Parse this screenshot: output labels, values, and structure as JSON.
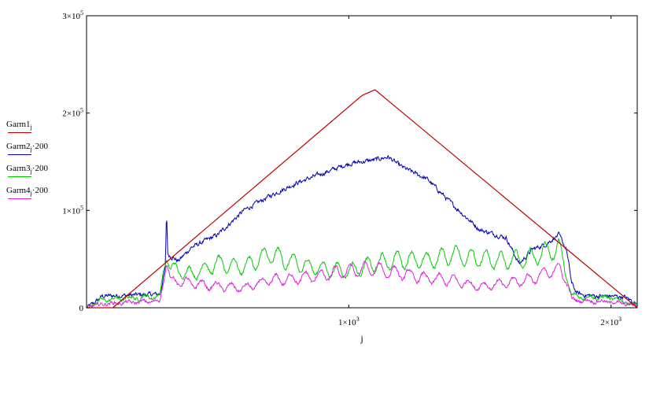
{
  "chart_data": {
    "type": "line",
    "xlabel": "j",
    "x_ticks": [
      {
        "value": 1000,
        "mant": "1×10",
        "exp": "3"
      },
      {
        "value": 2000,
        "mant": "2×10",
        "exp": "3"
      }
    ],
    "y_ticks": [
      {
        "value": 0,
        "mant": "0",
        "exp": ""
      },
      {
        "value": 100000,
        "mant": "1×10",
        "exp": "5"
      },
      {
        "value": 200000,
        "mant": "2×10",
        "exp": "5"
      },
      {
        "value": 300000,
        "mant": "3×10",
        "exp": "5"
      }
    ],
    "xlim": [
      0,
      2100
    ],
    "ylim": [
      0,
      300000
    ],
    "grid": false,
    "legend_placement": "left",
    "series": [
      {
        "name": "Garm1",
        "sub": "j",
        "suffix": "",
        "color": "#c00000",
        "x": [
          0,
          100,
          1050,
          1100,
          2100
        ],
        "y": [
          0,
          0,
          218000,
          224000,
          0
        ]
      },
      {
        "name": "Garm2",
        "sub": "j",
        "suffix": "·200",
        "color": "#0000b4",
        "x": [
          0,
          30,
          60,
          280,
          300,
          305,
          310,
          350,
          400,
          500,
          600,
          700,
          800,
          900,
          1000,
          1100,
          1150,
          1200,
          1300,
          1400,
          1500,
          1600,
          1650,
          1700,
          1750,
          1800,
          1830,
          1850,
          1870,
          1900,
          1950,
          2000,
          2050,
          2080,
          2100
        ],
        "y": [
          0,
          5000,
          12000,
          14000,
          40000,
          98000,
          55000,
          48000,
          62000,
          75000,
          100000,
          115000,
          128000,
          138000,
          148000,
          152000,
          155000,
          145000,
          132000,
          105000,
          80000,
          72000,
          45000,
          60000,
          65000,
          75000,
          60000,
          25000,
          15000,
          13000,
          12000,
          12000,
          11000,
          7000,
          3000
        ]
      },
      {
        "name": "Garm3",
        "sub": "j",
        "suffix": "·200",
        "color": "#00cc00",
        "x": [
          0,
          60,
          280,
          305,
          320,
          400,
          500,
          600,
          700,
          800,
          900,
          1000,
          1100,
          1200,
          1300,
          1400,
          1500,
          1600,
          1700,
          1800,
          1830,
          1850,
          2000,
          2100
        ],
        "y": [
          0,
          8000,
          12000,
          60000,
          40000,
          35000,
          45000,
          42000,
          55000,
          45000,
          40000,
          38000,
          45000,
          50000,
          48000,
          55000,
          50000,
          48000,
          52000,
          62000,
          35000,
          12000,
          10000,
          3000
        ]
      },
      {
        "name": "Garm4",
        "sub": "j",
        "suffix": "·200",
        "color": "#e020e0",
        "x": [
          0,
          60,
          280,
          305,
          320,
          400,
          500,
          600,
          700,
          800,
          900,
          1000,
          1100,
          1200,
          1300,
          1400,
          1500,
          1600,
          1700,
          1800,
          1830,
          1850,
          2000,
          2100
        ],
        "y": [
          0,
          4000,
          7000,
          50000,
          28000,
          25000,
          22000,
          20000,
          28000,
          30000,
          33000,
          38000,
          40000,
          35000,
          30000,
          28000,
          22000,
          25000,
          30000,
          40000,
          30000,
          8000,
          6000,
          2000
        ]
      }
    ]
  }
}
